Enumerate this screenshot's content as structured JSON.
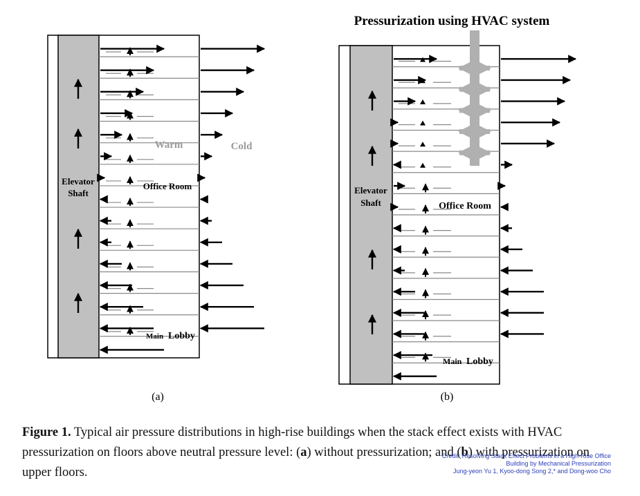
{
  "panel_a": {
    "labels": {
      "shaft": [
        "Elevator",
        "Shaft"
      ],
      "room": "Office Room",
      "warm": "Warm",
      "cold": "Cold",
      "lobby_small": "Main",
      "lobby_big": "Lobby",
      "sublabel": "(a)"
    },
    "left_arrows": [
      {
        "dir": 1,
        "len": 92
      },
      {
        "dir": 1,
        "len": 77
      },
      {
        "dir": 1,
        "len": 62
      },
      {
        "dir": 1,
        "len": 46
      },
      {
        "dir": 1,
        "len": 31
      },
      {
        "dir": 1,
        "len": 16
      },
      {
        "dir": 1,
        "len": 6
      },
      {
        "dir": -1,
        "len": 6
      },
      {
        "dir": -1,
        "len": 16
      },
      {
        "dir": -1,
        "len": 16
      },
      {
        "dir": -1,
        "len": 31
      },
      {
        "dir": -1,
        "len": 46
      },
      {
        "dir": -1,
        "len": 62
      },
      {
        "dir": -1,
        "len": 77
      },
      {
        "dir": -1,
        "len": 92
      }
    ],
    "right_arrows": [
      {
        "dir": 1,
        "len": 92
      },
      {
        "dir": 1,
        "len": 77
      },
      {
        "dir": 1,
        "len": 62
      },
      {
        "dir": 1,
        "len": 46
      },
      {
        "dir": 1,
        "len": 31
      },
      {
        "dir": 1,
        "len": 16
      },
      {
        "dir": 1,
        "len": 6
      },
      {
        "dir": -1,
        "len": 6
      },
      {
        "dir": -1,
        "len": 16
      },
      {
        "dir": -1,
        "len": 31
      },
      {
        "dir": -1,
        "len": 46
      },
      {
        "dir": -1,
        "len": 62
      },
      {
        "dir": -1,
        "len": 77
      },
      {
        "dir": -1,
        "len": 92
      }
    ]
  },
  "panel_b": {
    "labels": {
      "title": "Pressurization using HVAC system",
      "shaft": [
        "Elevator",
        "Shaft"
      ],
      "room": "Office Room",
      "lobby_small": "Main",
      "lobby_big": "Lobby",
      "sublabel": "(b)"
    },
    "left_arrows": [
      {
        "dir": 1,
        "len": 62
      },
      {
        "dir": 1,
        "len": 46
      },
      {
        "dir": 1,
        "len": 31
      },
      {
        "dir": 1,
        "len": 6
      },
      {
        "dir": 1,
        "len": 6
      },
      {
        "dir": -1,
        "len": 6
      },
      {
        "dir": 1,
        "len": 16
      },
      {
        "dir": 1,
        "len": 6
      },
      {
        "dir": -1,
        "len": 6
      },
      {
        "dir": -1,
        "len": 6
      },
      {
        "dir": -1,
        "len": 16
      },
      {
        "dir": -1,
        "len": 31
      },
      {
        "dir": -1,
        "len": 46
      },
      {
        "dir": -1,
        "len": 46
      },
      {
        "dir": -1,
        "len": 56
      },
      {
        "dir": -1,
        "len": 62
      }
    ],
    "right_arrows": [
      {
        "dir": 1,
        "len": 108
      },
      {
        "dir": 1,
        "len": 100
      },
      {
        "dir": 1,
        "len": 92
      },
      {
        "dir": 1,
        "len": 85
      },
      {
        "dir": 1,
        "len": 77
      },
      {
        "dir": 1,
        "len": 16
      },
      {
        "dir": 1,
        "len": 6
      },
      {
        "dir": -1,
        "len": 6
      },
      {
        "dir": -1,
        "len": 16
      },
      {
        "dir": -1,
        "len": 31
      },
      {
        "dir": -1,
        "len": 46
      },
      {
        "dir": -1,
        "len": 62
      },
      {
        "dir": -1,
        "len": 62
      },
      {
        "dir": -1,
        "len": 62
      }
    ]
  },
  "caption": {
    "figure_label": "Figure 1.",
    "text_1": " Typical air pressure distributions in high-rise buildings when the stack effect exists with HVAC pressurization on floors above neutral pressure level: (",
    "bold_a": "a",
    "text_2": ") without pressurization; and (",
    "bold_b": "b",
    "text_3": ") with pressurization on upper floors."
  },
  "credit": {
    "line1": "Credit: Resolving Stack Effect Problems in a High-Rise Office",
    "line2": "Building by Mechanical Pressurization",
    "line3": "Jung-yeon Yu 1, Kyoo-dong Song 2,* and Dong-woo Cho"
  },
  "colors": {
    "shaft_fill": "#c0c0c0",
    "floor_line": "#888888",
    "arrow": "#000000",
    "label_gray": "#9a9a9a",
    "hvac_gray": "#b0b0b0",
    "credit_text": "#2b3fb8"
  }
}
